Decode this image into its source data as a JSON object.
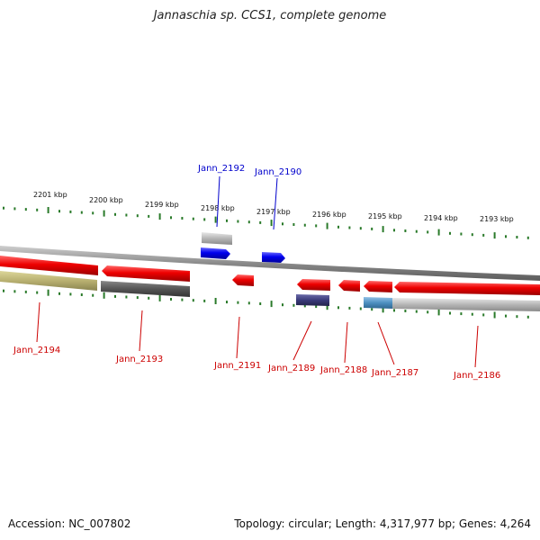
{
  "title": "Jannaschia sp. CCS1, complete genome",
  "footer": {
    "accession": "Accession: NC_007802",
    "summary": "Topology: circular; Length: 4,317,977 bp; Genes: 4,264"
  },
  "ticks": [
    {
      "label": "2201 kbp"
    },
    {
      "label": "2200 kbp"
    },
    {
      "label": "2199 kbp"
    },
    {
      "label": "2198 kbp"
    },
    {
      "label": "2197 kbp"
    },
    {
      "label": "2196 kbp"
    },
    {
      "label": "2195 kbp"
    },
    {
      "label": "2194 kbp"
    },
    {
      "label": "2193 kbp"
    }
  ],
  "genes": [
    {
      "label": "Jann_2194"
    },
    {
      "label": "Jann_2193"
    },
    {
      "label": "Jann_2192"
    },
    {
      "label": "Jann_2191"
    },
    {
      "label": "Jann_2190"
    },
    {
      "label": "Jann_2189"
    },
    {
      "label": "Jann_2188"
    },
    {
      "label": "Jann_2187"
    },
    {
      "label": "Jann_2186"
    }
  ],
  "colors": {
    "cds": "#ee0000",
    "cds_labeled_blue": "#0000ee",
    "backbone": "#888888",
    "ticks": "#2a7a2a",
    "grey_feature": "#b5b5b5",
    "dark_feature": "#555555",
    "olive_feature": "#b8b070",
    "purple_feature": "#3a3a7a",
    "steel_feature": "#4d8fc0"
  }
}
